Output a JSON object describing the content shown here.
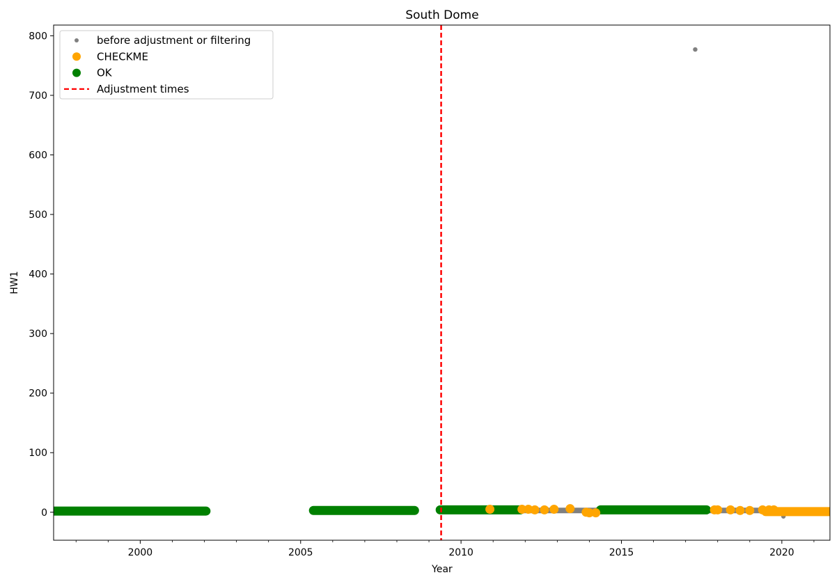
{
  "chart_data": {
    "type": "scatter",
    "title": "South Dome",
    "xlabel": "Year",
    "ylabel": "HW1",
    "xlim": [
      1997.3,
      2021.5
    ],
    "ylim": [
      -47,
      818
    ],
    "x_ticks": [
      2000,
      2005,
      2010,
      2015,
      2020
    ],
    "x_tick_labels": [
      "2000",
      "2005",
      "2010",
      "2015",
      "2020"
    ],
    "x_minor_step": 1,
    "y_ticks": [
      0,
      100,
      200,
      300,
      400,
      500,
      600,
      700,
      800
    ],
    "y_tick_labels": [
      "0",
      "100",
      "200",
      "300",
      "400",
      "500",
      "600",
      "700",
      "800"
    ],
    "grid": false,
    "legend_position": "upper left",
    "legend": [
      {
        "label": "before adjustment or filtering",
        "marker": "small-dot",
        "color": "#808080"
      },
      {
        "label": "CHECKME",
        "marker": "dot",
        "color": "#ffa500"
      },
      {
        "label": "OK",
        "marker": "dot",
        "color": "#008000"
      },
      {
        "label": "Adjustment times",
        "marker": "dashed-line",
        "color": "#ff0000"
      }
    ],
    "series": [
      {
        "name": "before adjustment or filtering",
        "color": "#808080",
        "segments": [
          {
            "x_start": 2011.8,
            "x_end": 2019.5,
            "y": 3
          }
        ],
        "points": [
          {
            "x": 2017.3,
            "y": 777
          },
          {
            "x": 2020.05,
            "y": -7
          }
        ]
      },
      {
        "name": "CHECKME",
        "color": "#ffa500",
        "segments": [
          {
            "x_start": 2019.5,
            "x_end": 2021.5,
            "y": 1
          }
        ],
        "points": [
          {
            "x": 2010.9,
            "y": 5
          },
          {
            "x": 2011.9,
            "y": 5
          },
          {
            "x": 2012.1,
            "y": 5
          },
          {
            "x": 2012.3,
            "y": 4
          },
          {
            "x": 2012.6,
            "y": 4
          },
          {
            "x": 2012.9,
            "y": 5
          },
          {
            "x": 2013.4,
            "y": 6
          },
          {
            "x": 2013.9,
            "y": 0
          },
          {
            "x": 2014.0,
            "y": -1
          },
          {
            "x": 2014.2,
            "y": -1
          },
          {
            "x": 2017.9,
            "y": 4
          },
          {
            "x": 2018.0,
            "y": 4
          },
          {
            "x": 2018.4,
            "y": 4
          },
          {
            "x": 2018.7,
            "y": 3
          },
          {
            "x": 2019.0,
            "y": 3
          },
          {
            "x": 2019.4,
            "y": 4
          },
          {
            "x": 2019.6,
            "y": 4
          },
          {
            "x": 2019.75,
            "y": 4
          }
        ]
      },
      {
        "name": "OK",
        "color": "#008000",
        "segments": [
          {
            "x_start": 1997.3,
            "x_end": 2002.05,
            "y": 2
          },
          {
            "x_start": 2005.4,
            "x_end": 2008.55,
            "y": 3
          },
          {
            "x_start": 2009.35,
            "x_end": 2011.85,
            "y": 4
          },
          {
            "x_start": 2014.35,
            "x_end": 2017.65,
            "y": 4
          }
        ]
      }
    ],
    "vlines": [
      {
        "x": 2009.38,
        "color": "#ff0000",
        "style": "dashed",
        "label": "Adjustment times"
      }
    ]
  }
}
